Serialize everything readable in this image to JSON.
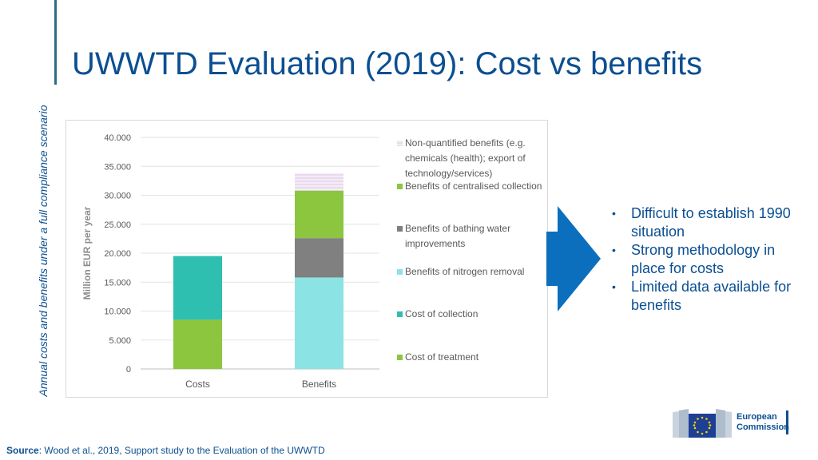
{
  "slide": {
    "title": "UWWTD Evaluation (2019): Cost vs benefits",
    "side_label": "Annual costs and benefits under a full compliance scenario",
    "bullets": [
      "Difficult to establish 1990 situation",
      "Strong methodology in place for costs",
      "Limited data available for benefits"
    ],
    "source_label": "Source",
    "source_text": ": Wood et al., 2019, Support study to the Evaluation of the UWWTD",
    "logo_line1": "European",
    "logo_line2": "Commission"
  },
  "colors": {
    "title": "#0b4f92",
    "arrow": "#0b6fbe",
    "treatment": "#8cc63f",
    "collection": "#2ebfb0",
    "nitrogen": "#8be3e3",
    "bathing": "#808080",
    "centralised": "#8cc63f",
    "nonquant": "#d9bfe0"
  },
  "chart_data": {
    "type": "bar",
    "stacked": true,
    "categories": [
      "Costs",
      "Benefits"
    ],
    "ylabel": "Million EUR per year",
    "ylim": [
      0,
      40000
    ],
    "yticks": [
      "0",
      "5.000",
      "10.000",
      "15.000",
      "20.000",
      "25.000",
      "30.000",
      "35.000",
      "40.000"
    ],
    "grid": true,
    "legend_position": "right",
    "series": [
      {
        "name": "Cost of treatment",
        "values": [
          8500,
          0
        ],
        "color_key": "treatment"
      },
      {
        "name": "Cost of collection",
        "values": [
          11000,
          0
        ],
        "color_key": "collection"
      },
      {
        "name": "Benefits of nitrogen removal",
        "values": [
          0,
          15800
        ],
        "color_key": "nitrogen"
      },
      {
        "name": "Benefits of bathing water improvements",
        "values": [
          0,
          6800
        ],
        "color_key": "bathing"
      },
      {
        "name": "Benefits of centralised collection",
        "values": [
          0,
          8200
        ],
        "color_key": "centralised"
      },
      {
        "name": "Non-quantified benefits (e.g. chemicals (health); export of technology/services)",
        "values": [
          0,
          3000
        ],
        "color_key": "nonquant",
        "hatched": true
      }
    ]
  }
}
